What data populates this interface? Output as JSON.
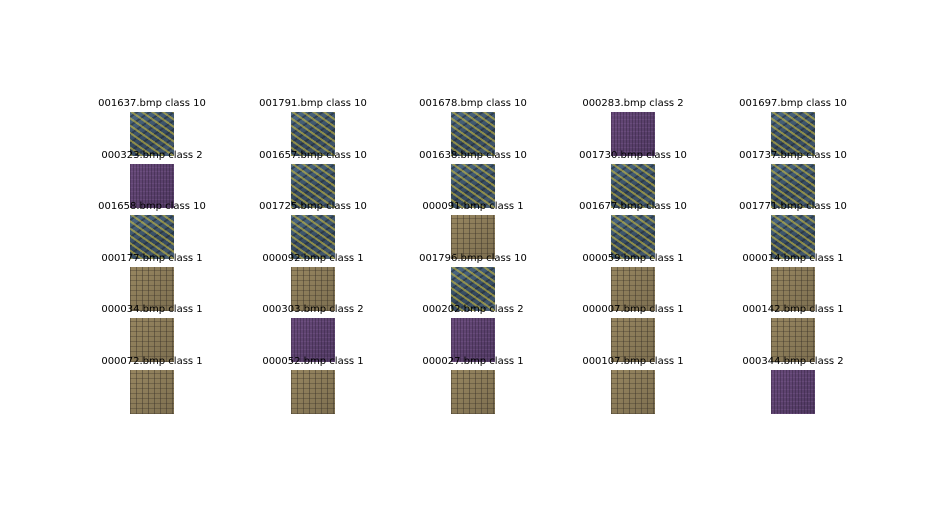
{
  "images": [
    {
      "label": "001637.bmp class 10",
      "texture": "c10"
    },
    {
      "label": "001791.bmp class 10",
      "texture": "c10"
    },
    {
      "label": "001678.bmp class 10",
      "texture": "c10"
    },
    {
      "label": "000283.bmp class 2",
      "texture": "c2"
    },
    {
      "label": "001697.bmp class 10",
      "texture": "c10"
    },
    {
      "label": "000323.bmp class 2",
      "texture": "c2"
    },
    {
      "label": "001657.bmp class 10",
      "texture": "c10"
    },
    {
      "label": "001638.bmp class 10",
      "texture": "c10"
    },
    {
      "label": "001730.bmp class 10",
      "texture": "c10"
    },
    {
      "label": "001737.bmp class 10",
      "texture": "c10"
    },
    {
      "label": "001658.bmp class 10",
      "texture": "c10"
    },
    {
      "label": "001725.bmp class 10",
      "texture": "c10"
    },
    {
      "label": "000091.bmp class 1",
      "texture": "c1"
    },
    {
      "label": "001677.bmp class 10",
      "texture": "c10"
    },
    {
      "label": "001771.bmp class 10",
      "texture": "c10"
    },
    {
      "label": "000177.bmp class 1",
      "texture": "c1"
    },
    {
      "label": "000092.bmp class 1",
      "texture": "c1"
    },
    {
      "label": "001796.bmp class 10",
      "texture": "c10"
    },
    {
      "label": "000059.bmp class 1",
      "texture": "c1"
    },
    {
      "label": "000014.bmp class 1",
      "texture": "c1"
    },
    {
      "label": "000034.bmp class 1",
      "texture": "c1"
    },
    {
      "label": "000303.bmp class 2",
      "texture": "c2"
    },
    {
      "label": "000202.bmp class 2",
      "texture": "c2"
    },
    {
      "label": "000007.bmp class 1",
      "texture": "c1"
    },
    {
      "label": "000142.bmp class 1",
      "texture": "c1"
    },
    {
      "label": "000072.bmp class 1",
      "texture": "c1"
    },
    {
      "label": "000052.bmp class 1",
      "texture": "c1"
    },
    {
      "label": "000027.bmp class 1",
      "texture": "c1"
    },
    {
      "label": "000107.bmp class 1",
      "texture": "c1"
    },
    {
      "label": "000344.bmp class 2",
      "texture": "c2"
    }
  ],
  "texture_colors": {
    "c10": "#3c4f63",
    "c2": "#5a3f6a",
    "c1": "#8a7a56"
  }
}
